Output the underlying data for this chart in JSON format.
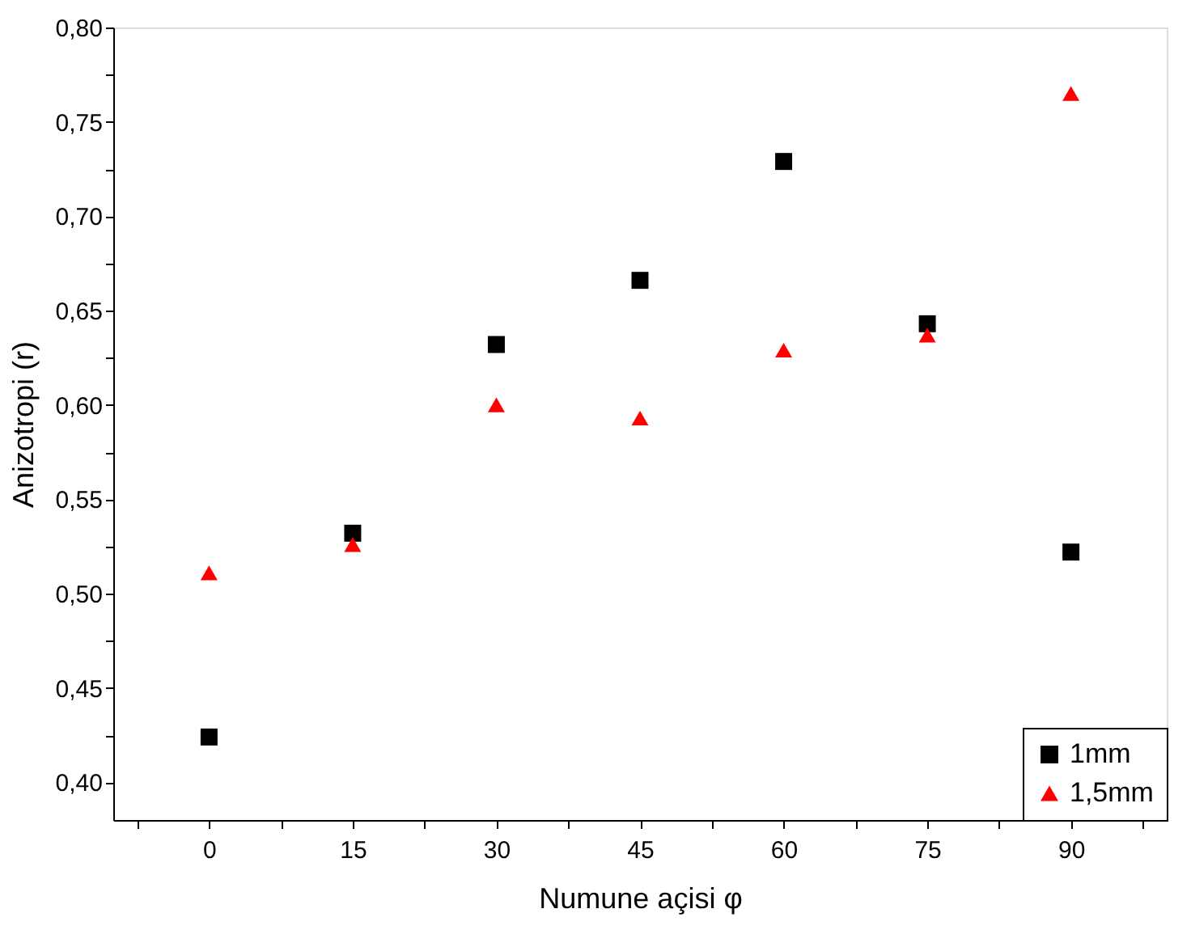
{
  "chart_data": {
    "type": "scatter",
    "xlabel": "Numune açisi φ",
    "ylabel": "Anizotropi (r)",
    "x": [
      0,
      15,
      30,
      45,
      60,
      75,
      90
    ],
    "series": [
      {
        "name": "1mm",
        "color": "#000000",
        "marker": "square",
        "values": [
          0.424,
          0.532,
          0.632,
          0.666,
          0.729,
          0.643,
          0.522
        ]
      },
      {
        "name": "1,5mm",
        "color": "#ff0000",
        "marker": "triangle",
        "values": [
          0.511,
          0.526,
          0.6,
          0.593,
          0.629,
          0.637,
          0.765
        ]
      }
    ],
    "xlim": [
      -10,
      100
    ],
    "xticks": [
      {
        "value": -7.5,
        "label": null
      },
      0,
      {
        "value": 7.5,
        "label": null
      },
      15,
      {
        "value": 22.5,
        "label": null
      },
      30,
      {
        "value": 37.5,
        "label": null
      },
      45,
      {
        "value": 52.5,
        "label": null
      },
      60,
      {
        "value": 67.5,
        "label": null
      },
      75,
      {
        "value": 82.5,
        "label": null
      },
      90,
      {
        "value": 97.5,
        "label": null
      }
    ],
    "ylim": [
      0.38,
      0.8
    ],
    "yticks": [
      {
        "value": 0.4,
        "label": "0,40"
      },
      {
        "value": 0.425,
        "label": null
      },
      {
        "value": 0.45,
        "label": "0,45"
      },
      {
        "value": 0.475,
        "label": null
      },
      {
        "value": 0.5,
        "label": "0,50"
      },
      {
        "value": 0.525,
        "label": null
      },
      {
        "value": 0.55,
        "label": "0,55"
      },
      {
        "value": 0.575,
        "label": null
      },
      {
        "value": 0.6,
        "label": "0,60"
      },
      {
        "value": 0.625,
        "label": null
      },
      {
        "value": 0.65,
        "label": "0,65"
      },
      {
        "value": 0.675,
        "label": null
      },
      {
        "value": 0.7,
        "label": "0,70"
      },
      {
        "value": 0.725,
        "label": null
      },
      {
        "value": 0.75,
        "label": "0,75"
      },
      {
        "value": 0.775,
        "label": null
      },
      {
        "value": 0.8,
        "label": "0,80"
      }
    ],
    "grid": false,
    "legend": "bottom right"
  }
}
